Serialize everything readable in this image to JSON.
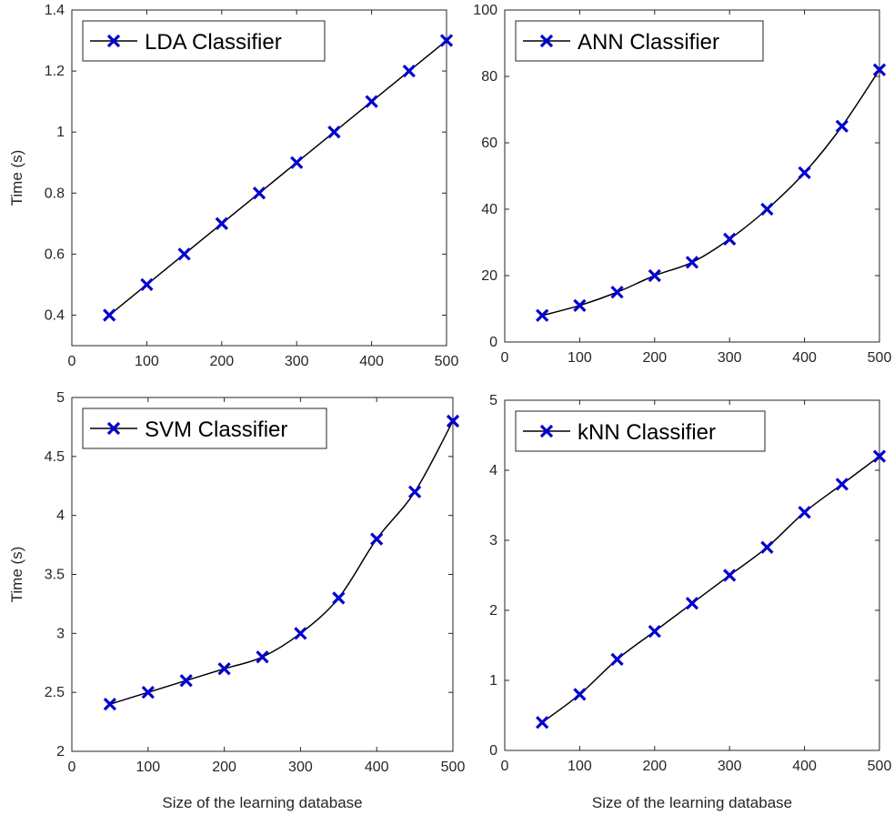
{
  "colors": {
    "marker": "#0000CC",
    "line": "#000000",
    "axes": "#262626"
  },
  "chart_data": [
    {
      "type": "line",
      "legend": "LDA Classifier",
      "legend_loc": "top-left",
      "xlabel": "",
      "ylabel": "Time (s)",
      "xlim": [
        0,
        500
      ],
      "ylim": [
        0.3,
        1.4
      ],
      "xticks": [
        0,
        100,
        200,
        300,
        400,
        500
      ],
      "yticks": [
        0.4,
        0.6,
        0.8,
        1,
        1.2,
        1.4
      ],
      "xtick_labels": [
        "0",
        "100",
        "200",
        "300",
        "400",
        "500"
      ],
      "ytick_labels": [
        "0.4",
        "0.6",
        "0.8",
        "1",
        "1.2",
        "1.4"
      ],
      "x": [
        50,
        100,
        150,
        200,
        250,
        300,
        350,
        400,
        450,
        500
      ],
      "y": [
        0.4,
        0.5,
        0.6,
        0.7,
        0.8,
        0.9,
        1.0,
        1.1,
        1.2,
        1.3
      ]
    },
    {
      "type": "line",
      "legend": "ANN Classifier",
      "legend_loc": "top-left",
      "xlabel": "",
      "ylabel": "",
      "xlim": [
        0,
        500
      ],
      "ylim": [
        0,
        100
      ],
      "xticks": [
        0,
        100,
        200,
        300,
        400,
        500
      ],
      "yticks": [
        0,
        20,
        40,
        60,
        80,
        100
      ],
      "xtick_labels": [
        "0",
        "100",
        "200",
        "300",
        "400",
        "500"
      ],
      "ytick_labels": [
        "0",
        "20",
        "40",
        "60",
        "80",
        "100"
      ],
      "x": [
        50,
        100,
        150,
        200,
        250,
        300,
        350,
        400,
        450,
        500
      ],
      "y": [
        8,
        11,
        15,
        20,
        24,
        31,
        40,
        51,
        65,
        82
      ]
    },
    {
      "type": "line",
      "legend": "SVM Classifier",
      "legend_loc": "top-left",
      "xlabel": "Size of the learning database",
      "ylabel": "Time (s)",
      "xlim": [
        0,
        500
      ],
      "ylim": [
        2,
        5
      ],
      "xticks": [
        0,
        100,
        200,
        300,
        400,
        500
      ],
      "yticks": [
        2,
        2.5,
        3,
        3.5,
        4,
        4.5,
        5
      ],
      "xtick_labels": [
        "0",
        "100",
        "200",
        "300",
        "400",
        "500"
      ],
      "ytick_labels": [
        "2",
        "2.5",
        "3",
        "3.5",
        "4",
        "4.5",
        "5"
      ],
      "x": [
        50,
        100,
        150,
        200,
        250,
        300,
        350,
        400,
        450,
        500
      ],
      "y": [
        2.4,
        2.5,
        2.6,
        2.7,
        2.8,
        3.0,
        3.3,
        3.8,
        4.2,
        4.8
      ]
    },
    {
      "type": "line",
      "legend": "kNN Classifier",
      "legend_loc": "top-left",
      "xlabel": "Size of the learning database",
      "ylabel": "",
      "xlim": [
        0,
        500
      ],
      "ylim": [
        0,
        5
      ],
      "xticks": [
        0,
        100,
        200,
        300,
        400,
        500
      ],
      "yticks": [
        0,
        1,
        2,
        3,
        4,
        5
      ],
      "xtick_labels": [
        "0",
        "100",
        "200",
        "300",
        "400",
        "500"
      ],
      "ytick_labels": [
        "0",
        "1",
        "2",
        "3",
        "4",
        "5"
      ],
      "x": [
        50,
        100,
        150,
        200,
        250,
        300,
        350,
        400,
        450,
        500
      ],
      "y": [
        0.4,
        0.8,
        1.3,
        1.7,
        2.1,
        2.5,
        2.9,
        3.4,
        3.8,
        4.2
      ]
    }
  ]
}
